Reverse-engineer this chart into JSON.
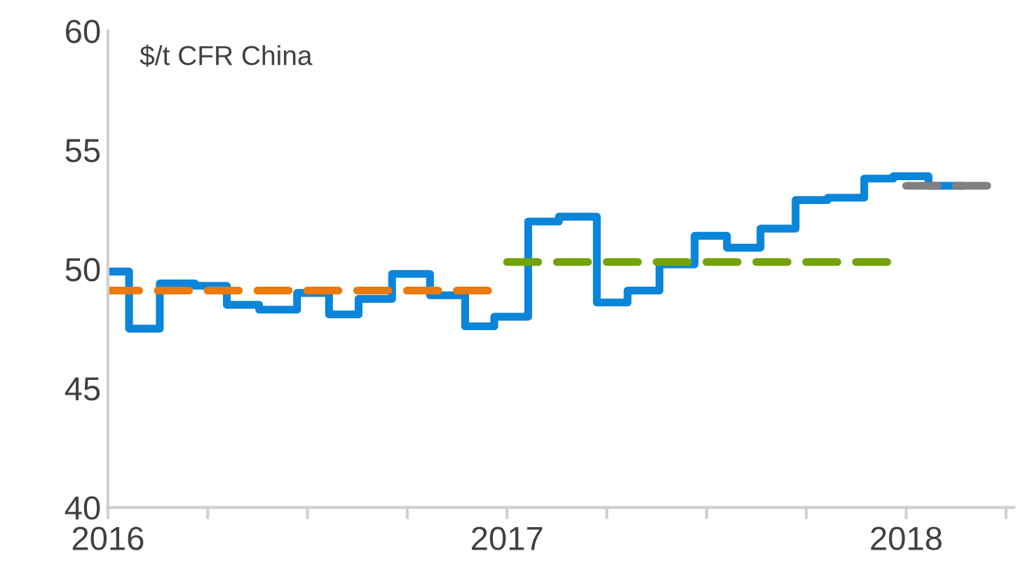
{
  "chart_data": {
    "type": "step",
    "annotations": [
      "$/t CFR China"
    ],
    "xlim": [
      2016,
      2018.27
    ],
    "ylim": [
      40,
      60
    ],
    "yticks": [
      40,
      45,
      50,
      55,
      60
    ],
    "xticks": [
      2016,
      {
        "value": 2016.25,
        "label": null
      },
      {
        "value": 2016.5,
        "label": null
      },
      {
        "value": 2016.75,
        "label": null
      },
      2017,
      {
        "value": 2017.25,
        "label": null
      },
      {
        "value": 2017.5,
        "label": null
      },
      {
        "value": 2017.75,
        "label": null
      },
      2018,
      {
        "value": 2018.25,
        "label": null
      }
    ],
    "grid": false,
    "legend": false,
    "series": [
      {
        "color": "#0a85d9",
        "line_style": "solid",
        "x": [
          2016.0,
          2016.053,
          2016.13,
          2016.218,
          2016.298,
          2016.379,
          2016.474,
          2016.554,
          2016.628,
          2016.712,
          2016.807,
          2016.895,
          2016.968,
          2017.053,
          2017.13,
          2017.225,
          2017.302,
          2017.382,
          2017.47,
          2017.551,
          2017.635,
          2017.723,
          2017.804,
          2017.895,
          2017.968,
          2018.056,
          2018.144
        ],
        "values": [
          49.9,
          47.5,
          49.4,
          49.3,
          48.5,
          48.3,
          49.0,
          48.1,
          48.75,
          49.8,
          48.9,
          47.6,
          48.0,
          52.0,
          52.2,
          48.6,
          49.1,
          50.2,
          51.4,
          50.9,
          51.7,
          52.9,
          53.0,
          53.8,
          53.9,
          53.5,
          53.5
        ]
      },
      {
        "type": "line",
        "color": "#e97a0b",
        "line_style": "dashed",
        "x": [
          2016.0,
          2016.975
        ],
        "values": [
          49.1,
          49.1
        ]
      },
      {
        "type": "line",
        "color": "#72a30b",
        "line_style": "dashed",
        "x": [
          2017.0,
          2017.97
        ],
        "values": [
          50.3,
          50.3
        ]
      },
      {
        "type": "line",
        "color": "#808080",
        "line_style": "dashed",
        "x": [
          2018.0,
          2018.23
        ],
        "values": [
          53.5,
          53.5
        ]
      }
    ]
  }
}
